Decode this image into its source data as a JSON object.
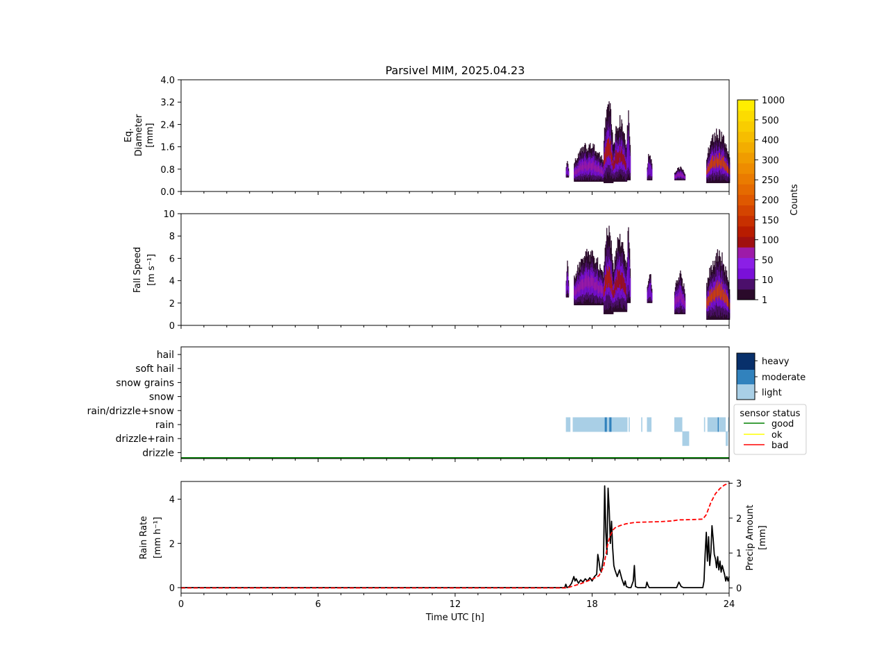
{
  "chart_data": [
    {
      "type": "heatmap",
      "title": "Parsivel MIM, 2025.04.23",
      "ylabel": [
        "Eq.",
        "Diameter",
        "[mm]"
      ],
      "ylim": [
        0,
        4
      ],
      "yticks": [
        "0.0",
        "0.8",
        "1.6",
        "2.4",
        "3.2",
        "4.0"
      ],
      "xlim": [
        0,
        24
      ],
      "colorbar": {
        "label": "Counts",
        "ticks": [
          "1",
          "10",
          "50",
          "100",
          "150",
          "200",
          "250",
          "300",
          "400",
          "500",
          "1000"
        ],
        "colors": [
          "#2a0a2a",
          "#4b0f6b",
          "#7a10d8",
          "#8b1fe6",
          "#9d1ba8",
          "#a01010",
          "#b81c00",
          "#c83000",
          "#d44400",
          "#df5800",
          "#e56a00",
          "#ea7b00",
          "#ee8c00",
          "#f09c00",
          "#f3ad00",
          "#f6bd00",
          "#f9cd00",
          "#fcdc00",
          "#ffed00"
        ]
      },
      "blobs": [
        {
          "t0": 16.85,
          "t1": 16.95,
          "lo": 0.5,
          "hi": 1.2,
          "peak": 1
        },
        {
          "t0": 17.2,
          "t1": 18.5,
          "lo": 0.35,
          "hi": 1.8,
          "peak": 2
        },
        {
          "t0": 18.5,
          "t1": 18.9,
          "lo": 0.3,
          "hi": 3.5,
          "peak": 4
        },
        {
          "t0": 18.9,
          "t1": 19.5,
          "lo": 0.35,
          "hi": 2.8,
          "peak": 3
        },
        {
          "t0": 19.5,
          "t1": 19.65,
          "lo": 0.4,
          "hi": 3.0,
          "peak": 1
        },
        {
          "t0": 20.4,
          "t1": 20.6,
          "lo": 0.4,
          "hi": 1.5,
          "peak": 1
        },
        {
          "t0": 21.6,
          "t1": 22.05,
          "lo": 0.4,
          "hi": 0.9,
          "peak": 2
        },
        {
          "t0": 23.0,
          "t1": 24.0,
          "lo": 0.3,
          "hi": 2.3,
          "peak": 6
        }
      ]
    },
    {
      "type": "heatmap",
      "ylabel": [
        "Fall Speed",
        "[m s⁻¹]"
      ],
      "ylim": [
        0,
        10
      ],
      "yticks": [
        "0",
        "2",
        "4",
        "6",
        "8",
        "10"
      ],
      "xlim": [
        0,
        24
      ],
      "blobs": [
        {
          "t0": 16.85,
          "t1": 16.95,
          "lo": 2.5,
          "hi": 6.0,
          "peak": 1
        },
        {
          "t0": 17.2,
          "t1": 18.5,
          "lo": 1.8,
          "hi": 7.0,
          "peak": 2
        },
        {
          "t0": 18.5,
          "t1": 18.9,
          "lo": 1.0,
          "hi": 10.0,
          "peak": 4
        },
        {
          "t0": 18.9,
          "t1": 19.5,
          "lo": 1.2,
          "hi": 8.5,
          "peak": 3
        },
        {
          "t0": 19.5,
          "t1": 19.65,
          "lo": 2.0,
          "hi": 9.0,
          "peak": 1
        },
        {
          "t0": 20.4,
          "t1": 20.6,
          "lo": 2.0,
          "hi": 5.0,
          "peak": 1
        },
        {
          "t0": 21.6,
          "t1": 22.05,
          "lo": 1.0,
          "hi": 5.0,
          "peak": 2
        },
        {
          "t0": 23.0,
          "t1": 24.0,
          "lo": 0.5,
          "hi": 7.0,
          "peak": 6
        }
      ]
    },
    {
      "type": "heatmap",
      "yticks": [
        "hail",
        "soft hail",
        "snow grains",
        "snow",
        "rain/drizzle+snow",
        "rain",
        "drizzle+rain",
        "drizzle"
      ],
      "xlim": [
        0,
        24
      ],
      "legend_intensity": {
        "labels": [
          "heavy",
          "moderate",
          "light"
        ],
        "colors": [
          "#08306b",
          "#3182bd",
          "#a9cfe6"
        ]
      },
      "legend_status": {
        "title": "sensor status",
        "labels": [
          "good",
          "ok",
          "bad"
        ],
        "colors": [
          "#008000",
          "#ffff00",
          "#ff0000"
        ]
      },
      "sensor_status": {
        "value": "good",
        "t0": 0,
        "t1": 24
      },
      "segments": [
        {
          "cat": "rain",
          "t0": 16.85,
          "t1": 17.05,
          "level": "light"
        },
        {
          "cat": "rain",
          "t0": 17.15,
          "t1": 18.55,
          "level": "light"
        },
        {
          "cat": "rain",
          "t0": 18.55,
          "t1": 18.65,
          "level": "moderate"
        },
        {
          "cat": "rain",
          "t0": 18.65,
          "t1": 18.75,
          "level": "light"
        },
        {
          "cat": "rain",
          "t0": 18.75,
          "t1": 18.85,
          "level": "moderate"
        },
        {
          "cat": "rain",
          "t0": 18.85,
          "t1": 19.55,
          "level": "light"
        },
        {
          "cat": "rain",
          "t0": 19.6,
          "t1": 19.65,
          "level": "light"
        },
        {
          "cat": "rain",
          "t0": 20.15,
          "t1": 20.2,
          "level": "light"
        },
        {
          "cat": "rain",
          "t0": 20.4,
          "t1": 20.6,
          "level": "light"
        },
        {
          "cat": "rain",
          "t0": 21.6,
          "t1": 21.95,
          "level": "light"
        },
        {
          "cat": "drizzle+rain",
          "t0": 21.95,
          "t1": 22.25,
          "level": "light"
        },
        {
          "cat": "rain",
          "t0": 22.9,
          "t1": 22.95,
          "level": "light"
        },
        {
          "cat": "rain",
          "t0": 23.05,
          "t1": 23.5,
          "level": "light"
        },
        {
          "cat": "rain",
          "t0": 23.5,
          "t1": 23.55,
          "level": "moderate"
        },
        {
          "cat": "rain",
          "t0": 23.55,
          "t1": 23.85,
          "level": "light"
        },
        {
          "cat": "drizzle+rain",
          "t0": 23.85,
          "t1": 23.95,
          "level": "light"
        },
        {
          "cat": "rain",
          "t0": 23.95,
          "t1": 24.0,
          "level": "light"
        }
      ]
    },
    {
      "type": "line",
      "xlabel": "Time UTC [h]",
      "ylabel": [
        "Rain Rate",
        "[mm h⁻¹]"
      ],
      "y2label": [
        "Precip Amount",
        "[mm]"
      ],
      "xlim": [
        0,
        24
      ],
      "xticks": [
        "0",
        "6",
        "12",
        "18",
        "24"
      ],
      "ylim": [
        -0.25,
        4.8
      ],
      "yticks": [
        "0",
        "2",
        "4"
      ],
      "y2lim": [
        -0.15,
        3.05
      ],
      "y2ticks": [
        "0",
        "1",
        "2",
        "3"
      ],
      "series": [
        {
          "color": "#000000",
          "style": "solid",
          "axis": "left",
          "x": [
            0,
            16.8,
            16.85,
            16.9,
            17.0,
            17.1,
            17.2,
            17.25,
            17.3,
            17.4,
            17.5,
            17.6,
            17.7,
            17.8,
            17.9,
            18.0,
            18.1,
            18.2,
            18.25,
            18.3,
            18.35,
            18.4,
            18.5,
            18.55,
            18.6,
            18.65,
            18.7,
            18.75,
            18.8,
            18.85,
            18.9,
            18.95,
            19.0,
            19.1,
            19.2,
            19.3,
            19.4,
            19.45,
            19.5,
            19.6,
            19.7,
            19.8,
            19.85,
            19.9,
            20.0,
            20.35,
            20.4,
            20.45,
            20.5,
            21.7,
            21.8,
            21.9,
            22.0,
            22.85,
            22.9,
            22.95,
            23.0,
            23.05,
            23.1,
            23.15,
            23.2,
            23.25,
            23.3,
            23.35,
            23.4,
            23.45,
            23.5,
            23.55,
            23.6,
            23.65,
            23.7,
            23.8,
            23.85,
            23.9,
            23.95,
            24.0
          ],
          "y": [
            0,
            0,
            0.15,
            0,
            0.05,
            0.2,
            0.5,
            0.3,
            0.4,
            0.2,
            0.35,
            0.25,
            0.4,
            0.3,
            0.45,
            0.3,
            0.5,
            0.6,
            1.5,
            1.2,
            0.8,
            0.7,
            1.4,
            4.6,
            2.5,
            1.5,
            4.5,
            3.5,
            2.0,
            3.0,
            1.8,
            1.0,
            0.8,
            0.5,
            0.8,
            0.4,
            0.1,
            0.3,
            0.05,
            0,
            0,
            0.3,
            1.0,
            0.05,
            0,
            0,
            0.25,
            0.1,
            0,
            0,
            0.25,
            0.05,
            0,
            0,
            0.3,
            1.5,
            2.5,
            1.2,
            2.3,
            1.0,
            1.6,
            2.8,
            2.2,
            1.5,
            1.3,
            0.9,
            1.4,
            0.8,
            1.2,
            0.7,
            1.0,
            0.6,
            0.3,
            0.5,
            0.3,
            0.5
          ]
        },
        {
          "color": "#ff0000",
          "style": "dashed",
          "axis": "right",
          "x": [
            0,
            16.8,
            17.0,
            17.5,
            18.0,
            18.3,
            18.5,
            18.6,
            18.7,
            18.8,
            18.9,
            19.0,
            19.2,
            19.5,
            19.9,
            20.5,
            21.0,
            21.5,
            21.8,
            22.0,
            22.5,
            22.85,
            23.0,
            23.2,
            23.4,
            23.6,
            23.8,
            24.0
          ],
          "y": [
            0,
            0,
            0.02,
            0.12,
            0.25,
            0.35,
            0.6,
            0.95,
            1.3,
            1.5,
            1.65,
            1.72,
            1.78,
            1.84,
            1.88,
            1.89,
            1.9,
            1.92,
            1.95,
            1.95,
            1.96,
            1.97,
            2.1,
            2.45,
            2.7,
            2.85,
            2.95,
            3.0
          ]
        }
      ]
    }
  ]
}
